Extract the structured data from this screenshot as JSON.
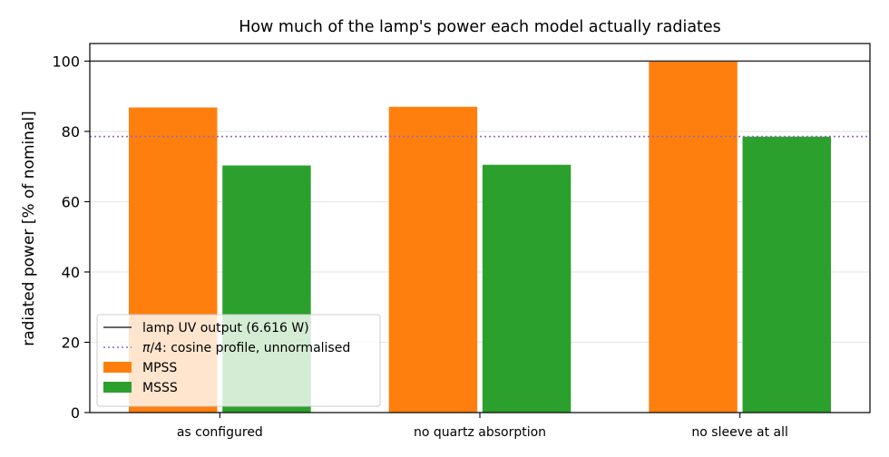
{
  "chart_data": {
    "type": "bar",
    "title": "How much of the lamp's power each model actually radiates",
    "xlabel": "",
    "ylabel": "radiated power  [% of nominal]",
    "ylim": [
      0,
      105
    ],
    "yticks": [
      0,
      20,
      40,
      60,
      80,
      100
    ],
    "grid": "horizontal",
    "categories": [
      "as configured",
      "no quartz absorption",
      "no sleeve at all"
    ],
    "series": [
      {
        "name": "MPSS",
        "color": "#ff7f0e",
        "values": [
          86.8,
          87.0,
          100.0
        ]
      },
      {
        "name": "MSSS",
        "color": "#2ca02c",
        "values": [
          70.3,
          70.5,
          78.5
        ]
      }
    ],
    "reference_lines": [
      {
        "label": "lamp UV output (6.616 W)",
        "value": 100,
        "style": "solid",
        "color": "#333333"
      },
      {
        "label": "π/4: cosine profile, unnormalised",
        "value": 78.54,
        "style": "dotted",
        "color": "#9467bd"
      }
    ],
    "legend": {
      "placement": "lower-left",
      "entries": [
        {
          "label": "lamp UV output (6.616 W)",
          "kind": "line-solid",
          "color": "#333333"
        },
        {
          "label_prefix": "π",
          "label_rest": "/4: cosine profile, unnormalised",
          "kind": "line-dotted",
          "color": "#9467bd"
        },
        {
          "label": "MPSS",
          "kind": "patch",
          "color": "#ff7f0e"
        },
        {
          "label": "MSSS",
          "kind": "patch",
          "color": "#2ca02c"
        }
      ]
    }
  }
}
